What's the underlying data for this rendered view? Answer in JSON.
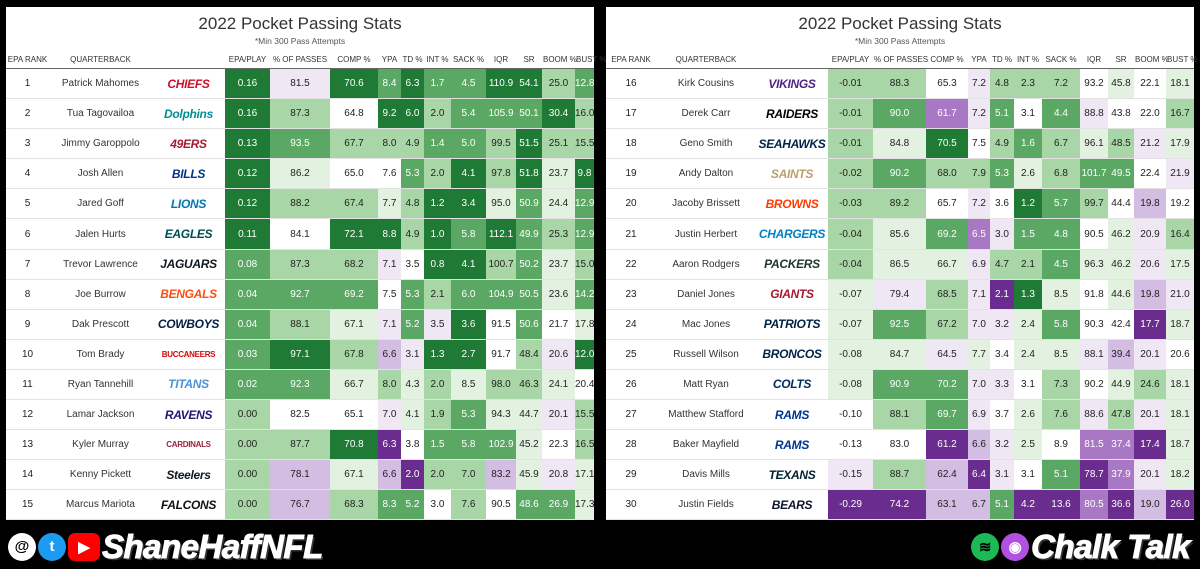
{
  "colors": {
    "green_dark": "#1e7a35",
    "green_mid": "#5aa864",
    "green_light": "#a9d6a6",
    "green_pale": "#e3f2e0",
    "purple_dark": "#6a2c8f",
    "purple_mid": "#a878c4",
    "purple_light": "#d4bde3",
    "purple_pale": "#f0e7f5"
  },
  "left": {
    "title": "2022 Pocket Passing Stats",
    "subtitle": "*Min 300 Pass Attempts",
    "headers": [
      "EPA RANK",
      "QUARTERBACK",
      "",
      "EPA/PLAY",
      "% OF PASSES",
      "COMP %",
      "YPA",
      "TD %",
      "INT %",
      "SACK %",
      "IQR",
      "SR",
      "BOOM %",
      "BUST %"
    ],
    "rows": [
      [
        "1",
        "Patrick Mahomes",
        "CHIEFS",
        "0.16",
        "81.5",
        "70.6",
        "8.4",
        "6.3",
        "1.7",
        "4.5",
        "110.9",
        "54.1",
        "25.0",
        "12.8"
      ],
      [
        "2",
        "Tua Tagovailoa",
        "Dolphins",
        "0.16",
        "87.3",
        "64.8",
        "9.2",
        "6.0",
        "2.0",
        "5.4",
        "105.9",
        "50.1",
        "30.4",
        "16.0"
      ],
      [
        "3",
        "Jimmy Garoppolo",
        "49ERS",
        "0.13",
        "93.5",
        "67.7",
        "8.0",
        "4.9",
        "1.4",
        "5.0",
        "99.5",
        "51.5",
        "25.1",
        "15.5"
      ],
      [
        "4",
        "Josh Allen",
        "BILLS",
        "0.12",
        "86.2",
        "65.0",
        "7.6",
        "5.3",
        "2.0",
        "4.1",
        "97.8",
        "51.8",
        "23.7",
        "9.8"
      ],
      [
        "5",
        "Jared Goff",
        "LIONS",
        "0.12",
        "88.2",
        "67.4",
        "7.7",
        "4.8",
        "1.2",
        "3.4",
        "95.0",
        "50.9",
        "24.4",
        "12.9"
      ],
      [
        "6",
        "Jalen Hurts",
        "EAGLES",
        "0.11",
        "84.1",
        "72.1",
        "8.8",
        "4.9",
        "1.0",
        "5.8",
        "112.1",
        "49.9",
        "25.3",
        "12.9"
      ],
      [
        "7",
        "Trevor Lawrence",
        "JAGUARS",
        "0.08",
        "87.3",
        "68.2",
        "7.1",
        "3.5",
        "0.8",
        "4.1",
        "100.7",
        "50.2",
        "23.7",
        "15.0"
      ],
      [
        "8",
        "Joe Burrow",
        "BENGALS",
        "0.04",
        "92.7",
        "69.2",
        "7.5",
        "5.3",
        "2.1",
        "6.0",
        "104.9",
        "50.5",
        "23.6",
        "14.2"
      ],
      [
        "9",
        "Dak Prescott",
        "COWBOYS",
        "0.04",
        "88.1",
        "67.1",
        "7.1",
        "5.2",
        "3.5",
        "3.6",
        "91.5",
        "50.6",
        "21.7",
        "17.8"
      ],
      [
        "10",
        "Tom Brady",
        "BUCCANEERS",
        "0.03",
        "97.1",
        "67.8",
        "6.6",
        "3.1",
        "1.3",
        "2.7",
        "91.7",
        "48.4",
        "20.6",
        "12.0"
      ],
      [
        "11",
        "Ryan Tannehill",
        "TITANS",
        "0.02",
        "92.3",
        "66.7",
        "8.0",
        "4.3",
        "2.0",
        "8.5",
        "98.0",
        "46.3",
        "24.1",
        "20.4"
      ],
      [
        "12",
        "Lamar Jackson",
        "RAVENS",
        "0.00",
        "82.5",
        "65.1",
        "7.0",
        "4.1",
        "1.9",
        "5.3",
        "94.3",
        "44.7",
        "20.1",
        "15.5"
      ],
      [
        "13",
        "Kyler Murray",
        "CARDINALS",
        "0.00",
        "87.7",
        "70.8",
        "6.3",
        "3.8",
        "1.5",
        "5.8",
        "102.9",
        "45.2",
        "22.3",
        "16.5"
      ],
      [
        "14",
        "Kenny Pickett",
        "Steelers",
        "0.00",
        "78.1",
        "67.1",
        "6.6",
        "2.0",
        "2.0",
        "7.0",
        "83.2",
        "45.9",
        "20.8",
        "17.1"
      ],
      [
        "15",
        "Marcus Mariota",
        "FALCONS",
        "0.00",
        "76.7",
        "68.3",
        "8.3",
        "5.2",
        "3.0",
        "7.6",
        "90.5",
        "48.6",
        "26.9",
        "17.3"
      ]
    ]
  },
  "right": {
    "title": "2022 Pocket Passing Stats",
    "subtitle": "*Min 300 Pass Attempts",
    "headers": [
      "EPA RANK",
      "QUARTERBACK",
      "",
      "EPA/PLAY",
      "% OF PASSES",
      "COMP %",
      "YPA",
      "TD %",
      "INT %",
      "SACK %",
      "IQR",
      "SR",
      "BOOM %",
      "BUST %"
    ],
    "rows": [
      [
        "16",
        "Kirk Cousins",
        "VIKINGS",
        "-0.01",
        "88.3",
        "65.3",
        "7.2",
        "4.8",
        "2.3",
        "7.2",
        "93.2",
        "45.8",
        "22.1",
        "18.1"
      ],
      [
        "17",
        "Derek Carr",
        "RAIDERS",
        "-0.01",
        "90.0",
        "61.7",
        "7.2",
        "5.1",
        "3.1",
        "4.4",
        "88.8",
        "43.8",
        "22.0",
        "16.7"
      ],
      [
        "18",
        "Geno Smith",
        "SEAHAWKS",
        "-0.01",
        "84.8",
        "70.5",
        "7.5",
        "4.9",
        "1.6",
        "6.7",
        "96.1",
        "48.5",
        "21.2",
        "17.9"
      ],
      [
        "19",
        "Andy Dalton",
        "SAINTS",
        "-0.02",
        "90.2",
        "68.0",
        "7.9",
        "5.3",
        "2.6",
        "6.8",
        "101.7",
        "49.5",
        "22.4",
        "21.9"
      ],
      [
        "20",
        "Jacoby Brissett",
        "BROWNS",
        "-0.03",
        "89.2",
        "65.7",
        "7.2",
        "3.6",
        "1.2",
        "5.7",
        "99.7",
        "44.4",
        "19.8",
        "19.2"
      ],
      [
        "21",
        "Justin Herbert",
        "CHARGERS",
        "-0.04",
        "85.6",
        "69.2",
        "6.5",
        "3.0",
        "1.5",
        "4.8",
        "90.5",
        "46.2",
        "20.9",
        "16.4"
      ],
      [
        "22",
        "Aaron Rodgers",
        "PACKERS",
        "-0.04",
        "86.5",
        "66.7",
        "6.9",
        "4.7",
        "2.1",
        "4.5",
        "96.3",
        "46.2",
        "20.6",
        "17.5"
      ],
      [
        "23",
        "Daniel Jones",
        "GIANTS",
        "-0.07",
        "79.4",
        "68.5",
        "7.1",
        "2.1",
        "1.3",
        "8.5",
        "91.8",
        "44.6",
        "19.8",
        "21.0"
      ],
      [
        "24",
        "Mac Jones",
        "PATRIOTS",
        "-0.07",
        "92.5",
        "67.2",
        "7.0",
        "3.2",
        "2.4",
        "5.8",
        "90.3",
        "42.4",
        "17.7",
        "18.7"
      ],
      [
        "25",
        "Russell Wilson",
        "BRONCOS",
        "-0.08",
        "84.7",
        "64.5",
        "7.7",
        "3.4",
        "2.4",
        "8.5",
        "88.1",
        "39.4",
        "20.1",
        "20.6"
      ],
      [
        "26",
        "Matt Ryan",
        "COLTS",
        "-0.08",
        "90.9",
        "70.2",
        "7.0",
        "3.3",
        "3.1",
        "7.3",
        "90.2",
        "44.9",
        "24.6",
        "18.1"
      ],
      [
        "27",
        "Matthew Stafford",
        "RAMS",
        "-0.10",
        "88.1",
        "69.7",
        "6.9",
        "3.7",
        "2.6",
        "7.6",
        "88.6",
        "47.8",
        "20.1",
        "18.1"
      ],
      [
        "28",
        "Baker Mayfield",
        "RAMS",
        "-0.13",
        "83.0",
        "61.2",
        "6.6",
        "3.2",
        "2.5",
        "8.9",
        "81.5",
        "37.4",
        "17.4",
        "18.7"
      ],
      [
        "29",
        "Davis Mills",
        "TEXANS",
        "-0.15",
        "88.7",
        "62.4",
        "6.4",
        "3.1",
        "3.1",
        "5.1",
        "78.7",
        "37.9",
        "20.1",
        "18.2"
      ],
      [
        "30",
        "Justin Fields",
        "BEARS",
        "-0.29",
        "74.2",
        "63.1",
        "6.7",
        "5.1",
        "4.2",
        "13.6",
        "80.5",
        "36.6",
        "19.0",
        "26.0"
      ]
    ]
  },
  "team_colors": {
    "CHIEFS": "#d0102a",
    "Dolphins": "#008e97",
    "49ERS": "#a71930",
    "BILLS": "#00338d",
    "LIONS": "#0076b6",
    "EAGLES": "#004c54",
    "JAGUARS": "#101820",
    "BENGALS": "#fb4f14",
    "COWBOYS": "#041e42",
    "BUCCANEERS": "#d50a0a",
    "TITANS": "#4b92db",
    "RAVENS": "#241773",
    "CARDINALS": "#97233f",
    "Steelers": "#101820",
    "FALCONS": "#111111",
    "VIKINGS": "#4f2683",
    "RAIDERS": "#000000",
    "SEAHAWKS": "#002244",
    "SAINTS": "#b8a06a",
    "BROWNS": "#ff3c00",
    "CHARGERS": "#0080c6",
    "PACKERS": "#203731",
    "GIANTS": "#a71930",
    "PATRIOTS": "#002244",
    "BRONCOS": "#002244",
    "COLTS": "#002c5f",
    "RAMS": "#003594",
    "TEXANS": "#03202f",
    "BEARS": "#0b162a"
  },
  "footer": {
    "left_handle": "ShaneHaffNFL",
    "right_brand": "Chalk Talk",
    "icons_left": [
      "threads-icon",
      "twitter-icon",
      "youtube-icon"
    ],
    "icons_right": [
      "spotify-icon",
      "podcast-icon"
    ]
  }
}
